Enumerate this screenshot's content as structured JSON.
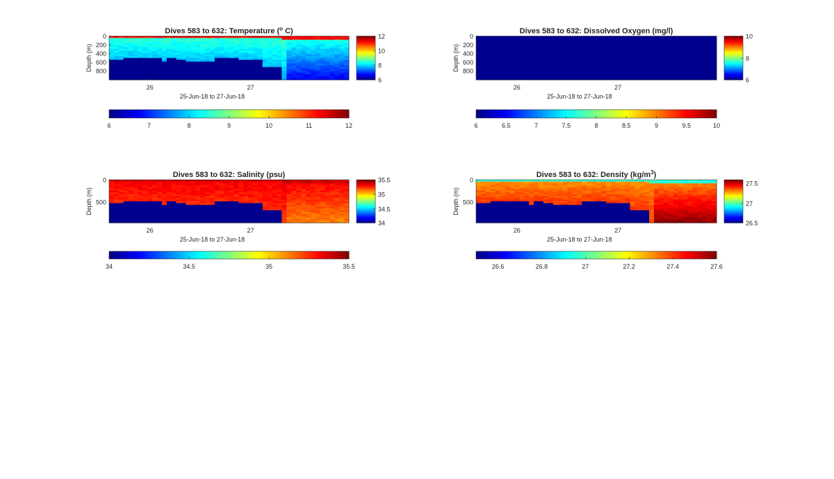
{
  "chart_data": [
    {
      "type": "heatmap",
      "title": "Dives 583 to 632: Temperature (",
      "title_sup": "o",
      "title_end": " C)",
      "ylabel": "Depth (m)",
      "xlabel": "25-Jun-18 to 27-Jun-18",
      "x_ticks": [
        "26",
        "27"
      ],
      "y_ticks": [
        "0",
        "200",
        "400",
        "600",
        "800"
      ],
      "colorbar_side_ticks": [
        "12",
        "10",
        "8",
        "6"
      ],
      "colorbar_bottom_ticks": [
        "6",
        "7",
        "8",
        "9",
        "10",
        "11",
        "12"
      ],
      "clim": [
        6,
        12
      ],
      "colormap": "jet",
      "dive_range": [
        583,
        632
      ],
      "surface_value": 11.2,
      "interior_value": 8.6,
      "bottom_value": 7.4,
      "missing_color": "#00008f"
    },
    {
      "type": "heatmap",
      "title": "Dives 583 to 632: Dissolved Oxygen (mg/l)",
      "ylabel": "Depth (m)",
      "xlabel": "25-Jun-18 to 27-Jun-18",
      "x_ticks": [
        "26",
        "27"
      ],
      "y_ticks": [
        "0",
        "200",
        "400",
        "600",
        "800"
      ],
      "colorbar_side_ticks": [
        "10",
        "8",
        "6"
      ],
      "colorbar_bottom_ticks": [
        "6",
        "6.5",
        "7",
        "7.5",
        "8",
        "8.5",
        "9",
        "9.5",
        "10"
      ],
      "clim": [
        6,
        10
      ],
      "colormap": "jet",
      "note_values": "all cells show the minimum colour (no data)",
      "missing_color": "#00008f"
    },
    {
      "type": "heatmap",
      "title": "Dives 583 to 632: Salinity (psu)",
      "ylabel": "Depth (m)",
      "xlabel": "25-Jun-18 to 27-Jun-18",
      "x_ticks": [
        "26",
        "27"
      ],
      "y_ticks": [
        "0",
        "500"
      ],
      "colorbar_side_ticks": [
        "35.5",
        "35",
        "34.5",
        "34"
      ],
      "colorbar_bottom_ticks": [
        "34",
        "34.5",
        "35",
        "35.5"
      ],
      "clim": [
        34,
        35.5
      ],
      "colormap": "jet",
      "surface_value": 35.38,
      "interior_value": 35.33,
      "bottom_value": 35.2,
      "missing_color": "#00008f"
    },
    {
      "type": "heatmap",
      "title": "Dives 583 to 632: Density (kg/m",
      "title_sup": "3",
      "title_end": ")",
      "ylabel": "Depth (m)",
      "xlabel": "25-Jun-18 to 27-Jun-18",
      "x_ticks": [
        "26",
        "27"
      ],
      "y_ticks": [
        "0",
        "500"
      ],
      "colorbar_side_ticks": [
        "27.5",
        "27",
        "26.5"
      ],
      "colorbar_bottom_ticks": [
        "26.6",
        "26.8",
        "27",
        "27.2",
        "27.4",
        "27.6"
      ],
      "clim": [
        26.5,
        27.6
      ],
      "colormap": "jet",
      "surface_value": 26.95,
      "interior_value": 27.3,
      "bottom_value": 27.48,
      "missing_color": "#00008f"
    }
  ]
}
